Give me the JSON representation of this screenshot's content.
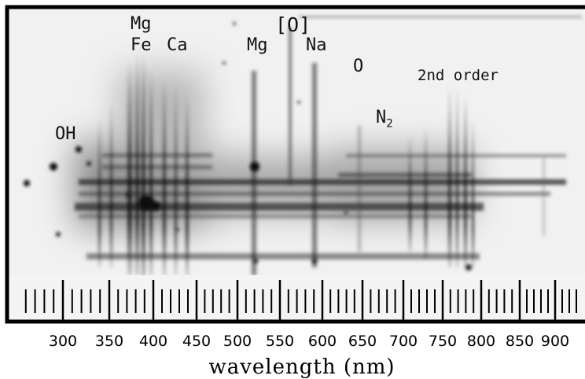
{
  "annotations": {
    "mg_top": "Mg",
    "fe": "Fe",
    "ca": "Ca",
    "oi_bracket": "[O]",
    "mg_mid": "Mg",
    "na": "Na",
    "o": "O",
    "second_order": "2nd order",
    "oh": "OH",
    "n2_base": "N",
    "n2_sub": "2"
  },
  "axis": {
    "title": "wavelength (nm)",
    "tick_labels": [
      "300",
      "350",
      "400",
      "450",
      "500",
      "550",
      "600",
      "650",
      "700",
      "750",
      "800",
      "850",
      "900"
    ]
  },
  "colors": {
    "frame": "#000000",
    "background": "#f1f1f1",
    "emission": "#1a1a1a"
  }
}
